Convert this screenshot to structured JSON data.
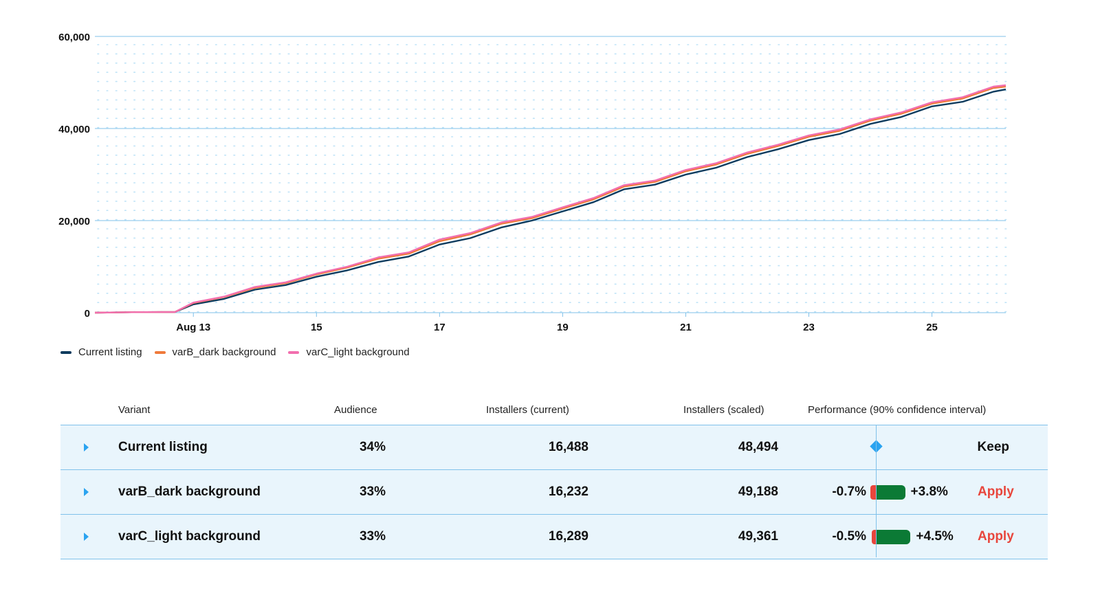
{
  "chart_data": {
    "type": "line",
    "x_tick_labels": [
      "Aug 13",
      "15",
      "17",
      "19",
      "21",
      "23",
      "25"
    ],
    "y_tick_labels": [
      "0",
      "20,000",
      "40,000",
      "60,000"
    ],
    "ylim": [
      0,
      60000
    ],
    "xlim": [
      "Aug 11.4",
      "Aug 26.2"
    ],
    "grid": true,
    "legend_position": "bottom-left",
    "series": [
      {
        "name": "Current listing",
        "color": "#0d3b5e",
        "x": [
          11.4,
          12.0,
          12.7,
          13.0,
          13.5,
          14.0,
          14.5,
          15.0,
          15.5,
          16.0,
          16.5,
          17.0,
          17.5,
          18.0,
          18.5,
          19.0,
          19.5,
          20.0,
          20.5,
          21.0,
          21.5,
          22.0,
          22.5,
          23.0,
          23.5,
          24.0,
          24.5,
          25.0,
          25.5,
          26.0,
          26.2
        ],
        "y": [
          0,
          100,
          150,
          1800,
          3000,
          5000,
          6000,
          7800,
          9200,
          11000,
          12200,
          14800,
          16200,
          18500,
          20000,
          22000,
          24000,
          26800,
          27800,
          30000,
          31500,
          33800,
          35500,
          37500,
          38800,
          41000,
          42500,
          44800,
          45800,
          48000,
          48500
        ]
      },
      {
        "name": "varB_dark background",
        "color": "#ef7a3b",
        "x": [
          11.4,
          12.0,
          12.7,
          13.0,
          13.5,
          14.0,
          14.5,
          15.0,
          15.5,
          16.0,
          16.5,
          17.0,
          17.5,
          18.0,
          18.5,
          19.0,
          19.5,
          20.0,
          20.5,
          21.0,
          21.5,
          22.0,
          22.5,
          23.0,
          23.5,
          24.0,
          24.5,
          25.0,
          25.5,
          26.0,
          26.2
        ],
        "y": [
          0,
          100,
          150,
          2100,
          3400,
          5400,
          6400,
          8300,
          9800,
          11700,
          12800,
          15500,
          17000,
          19300,
          20500,
          22600,
          24600,
          27400,
          28400,
          30700,
          32200,
          34500,
          36200,
          38200,
          39500,
          41700,
          43200,
          45400,
          46500,
          48800,
          49100
        ]
      },
      {
        "name": "varC_light background",
        "color": "#f26fae",
        "x": [
          11.4,
          12.0,
          12.7,
          13.0,
          13.5,
          14.0,
          14.5,
          15.0,
          15.5,
          16.0,
          16.5,
          17.0,
          17.5,
          18.0,
          18.5,
          19.0,
          19.5,
          20.0,
          20.5,
          21.0,
          21.5,
          22.0,
          22.5,
          23.0,
          23.5,
          24.0,
          24.5,
          25.0,
          25.5,
          26.0,
          26.2
        ],
        "y": [
          0,
          100,
          150,
          2200,
          3500,
          5600,
          6600,
          8500,
          10000,
          12000,
          13100,
          15900,
          17300,
          19600,
          20800,
          22900,
          24900,
          27700,
          28700,
          31000,
          32500,
          34800,
          36500,
          38500,
          39800,
          42000,
          43500,
          45700,
          46800,
          49100,
          49400
        ]
      }
    ]
  },
  "table": {
    "headers": {
      "variant": "Variant",
      "audience": "Audience",
      "installers_current": "Installers (current)",
      "installers_scaled": "Installers (scaled)",
      "performance": "Performance (90% confidence interval)"
    },
    "rows": [
      {
        "variant": "Current listing",
        "audience": "34%",
        "installers_current": "16,488",
        "installers_scaled": "48,494",
        "ci_low": "",
        "ci_high": "",
        "ci_low_value": 0,
        "ci_high_value": 0,
        "action": "Keep"
      },
      {
        "variant": "varB_dark background",
        "audience": "33%",
        "installers_current": "16,232",
        "installers_scaled": "49,188",
        "ci_low": "-0.7%",
        "ci_high": "+3.8%",
        "ci_low_value": -0.7,
        "ci_high_value": 3.8,
        "action": "Apply"
      },
      {
        "variant": "varC_light background",
        "audience": "33%",
        "installers_current": "16,289",
        "installers_scaled": "49,361",
        "ci_low": "-0.5%",
        "ci_high": "+4.5%",
        "ci_low_value": -0.5,
        "ci_high_value": 4.5,
        "action": "Apply"
      }
    ]
  },
  "colors": {
    "accent": "#2aa3f0",
    "positive": "#0b7a35",
    "negative": "#e8463c",
    "grid": "#7fc1ea",
    "row_bg": "#e9f5fc"
  }
}
